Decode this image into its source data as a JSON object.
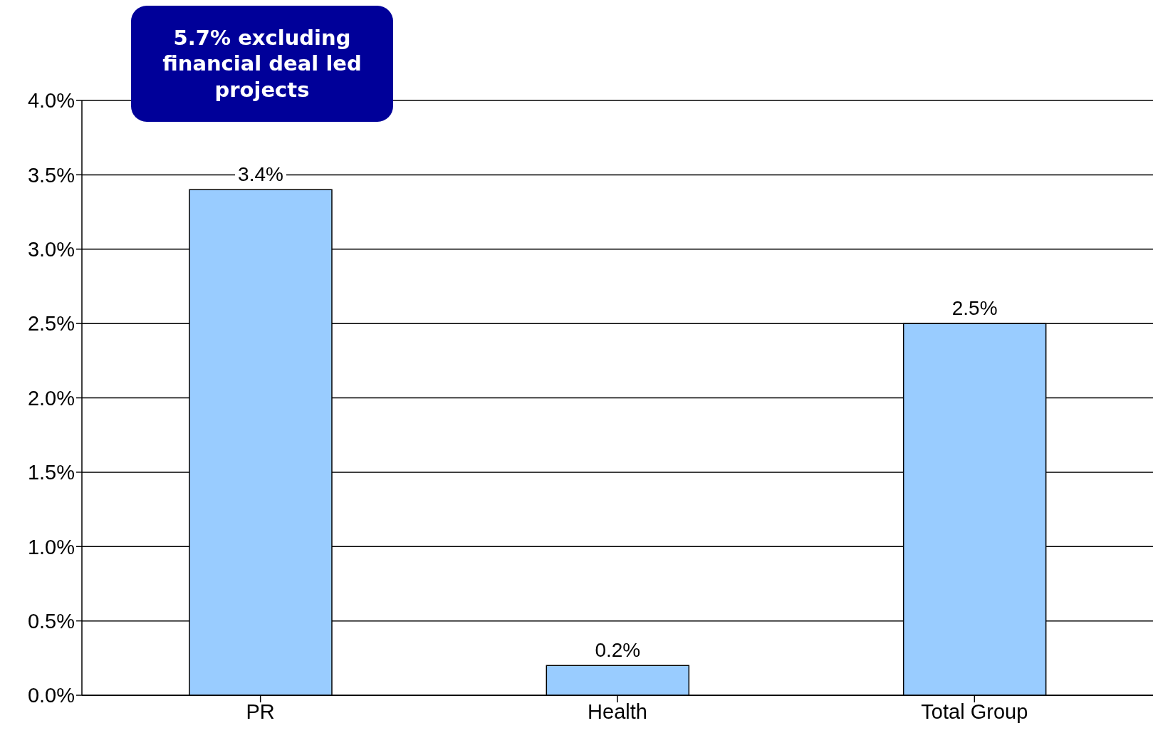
{
  "chart_data": {
    "type": "bar",
    "categories": [
      "PR",
      "Health",
      "Total Group"
    ],
    "values": [
      3.4,
      0.2,
      2.5
    ],
    "value_labels": [
      "3.4%",
      "0.2%",
      "2.5%"
    ],
    "color": "#99ccff",
    "ylim": [
      0,
      4
    ],
    "yticks": [
      {
        "value": 0,
        "label": "0.0%"
      },
      {
        "value": 0.5,
        "label": "0.5%"
      },
      {
        "value": 1,
        "label": "1.0%"
      },
      {
        "value": 1.5,
        "label": "1.5%"
      },
      {
        "value": 2,
        "label": "2.0%"
      },
      {
        "value": 2.5,
        "label": "2.5%"
      },
      {
        "value": 3,
        "label": "3.0%"
      },
      {
        "value": 3.5,
        "label": "3.5%"
      },
      {
        "value": 4,
        "label": "4.0%"
      }
    ],
    "grid": "y",
    "annotations": [
      "5.7% excluding financial deal led projects"
    ]
  }
}
